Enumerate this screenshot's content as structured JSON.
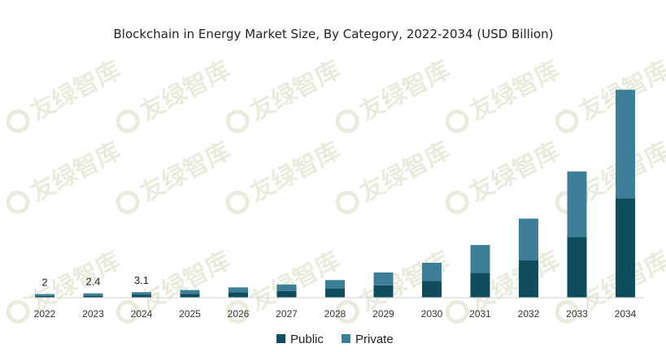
{
  "chart_data": {
    "type": "bar",
    "stacked": true,
    "title": "Blockchain in Energy Market Size, By Category, 2022-2034 (USD Billion)",
    "categories": [
      "2022",
      "2023",
      "2024",
      "2025",
      "2026",
      "2027",
      "2028",
      "2029",
      "2030",
      "2031",
      "2032",
      "2033",
      "2034"
    ],
    "series": [
      {
        "name": "Public",
        "color": "#0f4c5c",
        "values": [
          1.0,
          1.2,
          1.6,
          2.2,
          3.0,
          3.8,
          5.0,
          6.9,
          9.4,
          14.0,
          21.0,
          34.0,
          56.0
        ]
      },
      {
        "name": "Private",
        "color": "#3d7f98",
        "values": [
          1.0,
          1.2,
          1.5,
          2.1,
          2.8,
          3.6,
          4.9,
          7.3,
          10.2,
          15.6,
          23.5,
          37.0,
          61.0
        ]
      }
    ],
    "data_labels": [
      {
        "category": "2022",
        "text": "2"
      },
      {
        "category": "2023",
        "text": "2.4"
      },
      {
        "category": "2024",
        "text": "3.1"
      }
    ],
    "xlabel": "",
    "ylabel": "",
    "ylim": [
      0,
      120
    ],
    "grid": false,
    "legend": "bottom-center",
    "watermark": "友绿智库",
    "watermark_color": "#e8ecdc"
  }
}
